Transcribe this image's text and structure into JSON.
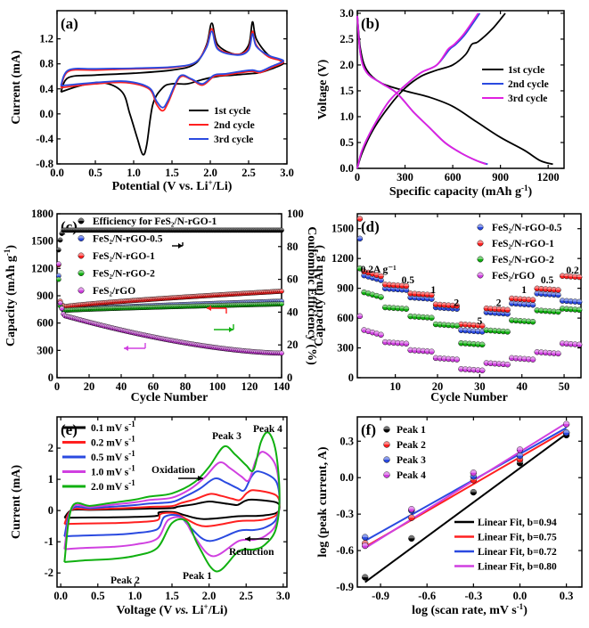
{
  "chart_data": [
    {
      "id": "a",
      "type": "line",
      "panel_label": "(a)",
      "xlabel": "Potential (V vs. Li",
      "xlabel_sup": "+",
      "xlabel_end": "/Li)",
      "ylabel": "Current (mA)",
      "xlim": [
        0,
        3
      ],
      "ylim": [
        -0.8,
        1.65
      ],
      "xticks": [
        "0.0",
        "0.5",
        "1.0",
        "1.5",
        "2.0",
        "2.5",
        "3.0"
      ],
      "xtick_values": [
        0,
        0.5,
        1,
        1.5,
        2,
        2.5,
        3
      ],
      "yticks": [
        "-0.8",
        "-0.4",
        "0.0",
        "0.4",
        "0.8",
        "1.2"
      ],
      "ytick_values": [
        -0.8,
        -0.4,
        0,
        0.4,
        0.8,
        1.2
      ],
      "legend": [
        "1st cycle",
        "2nd cycle",
        "3rd cycle"
      ],
      "series": [
        {
          "name": "1st cycle",
          "color": "#000000",
          "x": [
            0.05,
            0.3,
            0.6,
            0.85,
            0.95,
            1.05,
            1.12,
            1.17,
            1.25,
            1.38,
            1.5,
            1.7,
            1.9,
            2.1,
            2.3,
            2.5,
            2.65,
            2.8,
            2.95,
            2.9,
            2.75,
            2.6,
            2.55,
            2.5,
            2.35,
            2.1,
            2.02,
            1.95,
            1.8,
            1.5,
            1.0,
            0.5,
            0.15,
            0.05
          ],
          "y": [
            0.35,
            0.45,
            0.5,
            0.35,
            0.0,
            -0.4,
            -0.65,
            -0.5,
            0.15,
            0.42,
            0.48,
            0.48,
            0.55,
            0.6,
            0.62,
            0.64,
            0.66,
            0.72,
            0.8,
            0.86,
            0.95,
            1.2,
            1.47,
            1.1,
            0.95,
            1.1,
            1.45,
            1.1,
            0.8,
            0.7,
            0.65,
            0.62,
            0.58,
            0.35
          ]
        },
        {
          "name": "2nd cycle",
          "color": "#ff2020",
          "x": [
            0.05,
            0.5,
            0.9,
            1.2,
            1.3,
            1.38,
            1.45,
            1.6,
            1.75,
            1.9,
            2.05,
            2.2,
            2.4,
            2.55,
            2.65,
            2.8,
            2.95,
            2.9,
            2.75,
            2.6,
            2.55,
            2.5,
            2.35,
            2.1,
            2.02,
            1.95,
            1.8,
            1.5,
            1.0,
            0.5,
            0.15,
            0.05
          ],
          "y": [
            0.42,
            0.48,
            0.5,
            0.4,
            0.15,
            0.05,
            0.18,
            0.58,
            0.55,
            0.46,
            0.6,
            0.62,
            0.66,
            0.68,
            0.66,
            0.74,
            0.82,
            0.86,
            0.92,
            1.1,
            1.32,
            1.05,
            0.95,
            1.05,
            1.36,
            1.08,
            0.82,
            0.74,
            0.72,
            0.7,
            0.68,
            0.42
          ]
        },
        {
          "name": "3rd cycle",
          "color": "#2a4ae0",
          "x": [
            0.05,
            0.5,
            0.9,
            1.2,
            1.3,
            1.38,
            1.45,
            1.6,
            1.75,
            1.9,
            2.05,
            2.2,
            2.4,
            2.55,
            2.65,
            2.8,
            2.95,
            2.9,
            2.75,
            2.6,
            2.55,
            2.5,
            2.35,
            2.1,
            2.02,
            1.95,
            1.8,
            1.5,
            1.0,
            0.5,
            0.15,
            0.05
          ],
          "y": [
            0.45,
            0.5,
            0.52,
            0.42,
            0.2,
            0.1,
            0.22,
            0.6,
            0.56,
            0.48,
            0.62,
            0.64,
            0.68,
            0.7,
            0.68,
            0.76,
            0.84,
            0.88,
            0.94,
            1.08,
            1.28,
            1.02,
            0.94,
            1.03,
            1.32,
            1.06,
            0.82,
            0.75,
            0.73,
            0.72,
            0.7,
            0.45
          ]
        }
      ]
    },
    {
      "id": "b",
      "type": "line",
      "panel_label": "(b)",
      "xlabel": "Specific capacity (mAh g",
      "xlabel_sup": "-1",
      "xlabel_end": ")",
      "ylabel": "Voltage (V)",
      "xlim": [
        0,
        1300
      ],
      "ylim": [
        0,
        3.05
      ],
      "xticks": [
        "0",
        "300",
        "600",
        "900",
        "1200"
      ],
      "xtick_values": [
        0,
        300,
        600,
        900,
        1200
      ],
      "yticks": [
        "0.0",
        "0.5",
        "1.0",
        "1.5",
        "2.0",
        "2.5",
        "3.0"
      ],
      "ytick_values": [
        0,
        0.5,
        1,
        1.5,
        2,
        2.5,
        3
      ],
      "legend": [
        "1st cycle",
        "2nd cycle",
        "3rd cycle"
      ],
      "series": [
        {
          "name": "1st cycle discharge",
          "color": "#000000",
          "x": [
            0,
            20,
            60,
            150,
            300,
            450,
            600,
            750,
            900,
            1050,
            1150,
            1230
          ],
          "y": [
            2.95,
            2.3,
            1.9,
            1.65,
            1.5,
            1.38,
            1.2,
            0.9,
            0.6,
            0.35,
            0.15,
            0.08
          ]
        },
        {
          "name": "1st cycle charge",
          "color": "#000000",
          "x": [
            0,
            30,
            100,
            200,
            300,
            400,
            500,
            600,
            680,
            720,
            760,
            850,
            930
          ],
          "y": [
            0,
            0.3,
            0.75,
            1.2,
            1.55,
            1.78,
            1.9,
            2.0,
            2.2,
            2.4,
            2.45,
            2.7,
            3.0
          ]
        },
        {
          "name": "2nd cycle discharge",
          "color": "#2a4ae0",
          "x": [
            0,
            20,
            60,
            150,
            250,
            350,
            450,
            550,
            650,
            750,
            820
          ],
          "y": [
            2.95,
            2.2,
            1.85,
            1.65,
            1.45,
            1.1,
            0.8,
            0.5,
            0.3,
            0.15,
            0.08
          ]
        },
        {
          "name": "2nd cycle charge",
          "color": "#2a4ae0",
          "x": [
            0,
            30,
            100,
            200,
            300,
            400,
            500,
            580,
            620,
            680,
            770
          ],
          "y": [
            0,
            0.35,
            0.8,
            1.3,
            1.6,
            1.85,
            2.0,
            2.3,
            2.4,
            2.6,
            3.0
          ]
        },
        {
          "name": "3rd cycle discharge",
          "color": "#e020e0",
          "x": [
            0,
            20,
            60,
            150,
            250,
            350,
            450,
            550,
            650,
            750,
            810
          ],
          "y": [
            2.95,
            2.2,
            1.85,
            1.65,
            1.45,
            1.1,
            0.8,
            0.5,
            0.3,
            0.15,
            0.08
          ]
        },
        {
          "name": "3rd cycle charge",
          "color": "#e020e0",
          "x": [
            0,
            30,
            100,
            200,
            300,
            400,
            500,
            570,
            610,
            670,
            760
          ],
          "y": [
            0,
            0.35,
            0.8,
            1.3,
            1.6,
            1.85,
            2.0,
            2.3,
            2.4,
            2.6,
            3.0
          ]
        }
      ]
    },
    {
      "id": "c",
      "type": "scatter",
      "panel_label": "(c)",
      "xlabel": "Cycle Number",
      "ylabel": "Capacity (mAh g",
      "ylabel_sup": "-1",
      "ylabel_end": ")",
      "y2label": "Coulombic Efficiency (%)",
      "xlim": [
        0,
        140
      ],
      "ylim": [
        0,
        1800
      ],
      "y2lim": [
        0,
        100
      ],
      "xticks": [
        "0",
        "20",
        "40",
        "60",
        "80",
        "100",
        "120",
        "140"
      ],
      "xtick_values": [
        0,
        20,
        40,
        60,
        80,
        100,
        120,
        140
      ],
      "yticks": [
        "0",
        "300",
        "600",
        "900",
        "1200",
        "1500",
        "1800"
      ],
      "ytick_values": [
        0,
        300,
        600,
        900,
        1200,
        1500,
        1800
      ],
      "y2ticks": [
        "0",
        "20",
        "40",
        "60",
        "80",
        "100"
      ],
      "y2tick_values": [
        0,
        20,
        40,
        60,
        80,
        100
      ],
      "legend": [
        "Efficiency for FeS₂/N-rGO-1",
        "FeS₂/N-rGO-0.5",
        "FeS₂/N-rGO-1",
        "FeS₂/N-rGO-2",
        "FeS₂/rGO"
      ],
      "series": [
        {
          "name": "Efficiency",
          "color": "#000000",
          "axis": "y2",
          "start": [
            78,
            84,
            88
          ],
          "plateau": 90,
          "first": 1
        },
        {
          "name": "FeS₂/N-rGO-0.5",
          "color": "#2a4ae0",
          "start": [
            1120,
            820,
            760,
            740
          ],
          "c5": 745,
          "c140": 840
        },
        {
          "name": "FeS₂/N-rGO-1",
          "color": "#ff2020",
          "start": [
            1240,
            840,
            800,
            790
          ],
          "c5": 780,
          "c140": 950
        },
        {
          "name": "FeS₂/N-rGO-2",
          "color": "#10b010",
          "start": [
            1080,
            790,
            760,
            750
          ],
          "c5": 740,
          "c140": 810
        },
        {
          "name": "FeS₂/rGO",
          "color": "#d040e0",
          "start": [
            1250,
            820,
            760,
            700
          ],
          "c5": 680,
          "c140": 270
        }
      ]
    },
    {
      "id": "d",
      "type": "scatter",
      "panel_label": "(d)",
      "xlabel": "Cycle Number",
      "ylabel": "Capacity (mAh g",
      "ylabel_sup": "-1",
      "ylabel_end": ")",
      "xlim": [
        1,
        54
      ],
      "ylim": [
        0,
        1650
      ],
      "xticks": [
        "10",
        "20",
        "30",
        "40",
        "50"
      ],
      "xtick_values": [
        10,
        20,
        30,
        40,
        50
      ],
      "yticks": [
        "0",
        "300",
        "600",
        "900",
        "1200",
        "1500"
      ],
      "ytick_values": [
        0,
        300,
        600,
        900,
        1200,
        1500
      ],
      "legend": [
        "FeS₂/N-rGO-0.5",
        "FeS₂/N-rGO-1",
        "FeS₂/N-rGO-2",
        "FeS₂/rGO"
      ],
      "rate_labels": [
        "0.2A g⁻¹",
        "0.5",
        "1",
        "2",
        "5",
        "2",
        "1",
        "0.5",
        "0.2"
      ],
      "rate_positions": [
        [
          6,
          1060
        ],
        [
          13,
          950
        ],
        [
          19,
          850
        ],
        [
          24.5,
          720
        ],
        [
          30,
          540
        ],
        [
          34.5,
          720
        ],
        [
          40.5,
          850
        ],
        [
          46,
          950
        ],
        [
          52,
          1050
        ]
      ],
      "series": [
        {
          "name": "FeS₂/N-rGO-0.5",
          "color": "#2a4ae0",
          "first": 1400,
          "levels": [
            970,
            880,
            790,
            690,
            460,
            640,
            730,
            830,
            760
          ]
        },
        {
          "name": "FeS₂/N-rGO-1",
          "color": "#ff2020",
          "first": 1600,
          "levels": [
            1010,
            920,
            830,
            720,
            520,
            680,
            780,
            880,
            1010
          ]
        },
        {
          "name": "FeS₂/N-rGO-2",
          "color": "#10b010",
          "first": 1100,
          "levels": [
            800,
            690,
            600,
            520,
            330,
            460,
            560,
            660,
            680
          ]
        },
        {
          "name": "FeS₂/rGO",
          "color": "#d040e0",
          "first": 620,
          "levels": [
            420,
            340,
            260,
            180,
            70,
            130,
            180,
            240,
            330
          ]
        }
      ]
    },
    {
      "id": "e",
      "type": "line",
      "panel_label": "(e)",
      "xlabel": "Voltage (V ",
      "xlabel_it": "vs.",
      "xlabel_mid": " Li",
      "xlabel_sup": "+",
      "xlabel_end": "/Li)",
      "ylabel": "Current (mA)",
      "xlim": [
        -0.05,
        3.05
      ],
      "ylim": [
        -2.45,
        3.0
      ],
      "xticks": [
        "0.0",
        "0.5",
        "1.0",
        "1.5",
        "2.0",
        "2.5",
        "3.0"
      ],
      "xtick_values": [
        0,
        0.5,
        1,
        1.5,
        2,
        2.5,
        3
      ],
      "yticks": [
        "-2",
        "-1",
        "0",
        "1",
        "2"
      ],
      "ytick_values": [
        -2,
        -1,
        0,
        1,
        2
      ],
      "legend": [
        "0.1 mV s",
        "0.2 mV s",
        "0.5 mV s",
        "1.0 mV s",
        "2.0 mV s"
      ],
      "legend_sup": "-1",
      "annotations": [
        "Oxidation",
        "Reduction",
        "Peak 1",
        "Peak 2",
        "Peak 3",
        "Peak 4"
      ],
      "series": [
        {
          "name": "0.1 mV s-1",
          "color": "#000000",
          "scale": 0.14
        },
        {
          "name": "0.2 mV s-1",
          "color": "#ff2020",
          "scale": 0.26
        },
        {
          "name": "0.5 mV s-1",
          "color": "#2a4ae0",
          "scale": 0.5
        },
        {
          "name": "1.0 mV s-1",
          "color": "#d040e0",
          "scale": 0.75
        },
        {
          "name": "2.0 mV s-1",
          "color": "#10b010",
          "scale": 1.0
        }
      ]
    },
    {
      "id": "f",
      "type": "scatter",
      "panel_label": "(f)",
      "xlabel": "log (scan rate, mV s",
      "xlabel_sup": "-1",
      "xlabel_end": ")",
      "ylabel": "log (peak current, A)",
      "xlim": [
        -1.05,
        0.4
      ],
      "ylim": [
        -0.9,
        0.5
      ],
      "xticks": [
        "-0.9",
        "-0.6",
        "-0.3",
        "0.0",
        "0.3"
      ],
      "xtick_values": [
        -0.9,
        -0.6,
        -0.3,
        0,
        0.3
      ],
      "yticks": [
        "-0.9",
        "-0.6",
        "-0.3",
        "0.0",
        "0.3"
      ],
      "ytick_values": [
        -0.9,
        -0.6,
        -0.3,
        0,
        0.3
      ],
      "legend": [
        "Peak 1",
        "Peak 2",
        "Peak 3",
        "Peak 4"
      ],
      "fit_legend": [
        "Linear Fit, b=0.94",
        "Linear Fit, b=0.75",
        "Linear Fit, b=0.72",
        "Linear Fit, b=0.80"
      ],
      "x": [
        -1.0,
        -0.7,
        -0.3,
        0.0,
        0.3
      ],
      "series": [
        {
          "name": "Peak 1",
          "color": "#000000",
          "y": [
            -0.82,
            -0.5,
            -0.12,
            0.12,
            0.35
          ],
          "fit": [
            -0.86,
            0.36
          ]
        },
        {
          "name": "Peak 2",
          "color": "#ff2020",
          "y": [
            -0.54,
            -0.33,
            -0.02,
            0.15,
            0.37
          ],
          "fit": [
            -0.57,
            0.39
          ]
        },
        {
          "name": "Peak 3",
          "color": "#2a4ae0",
          "y": [
            -0.49,
            -0.27,
            0.01,
            0.18,
            0.37
          ],
          "fit": [
            -0.52,
            0.41
          ]
        },
        {
          "name": "Peak 4",
          "color": "#d040e0",
          "y": [
            -0.56,
            -0.26,
            0.04,
            0.23,
            0.44
          ],
          "fit": [
            -0.58,
            0.45
          ]
        }
      ]
    }
  ]
}
